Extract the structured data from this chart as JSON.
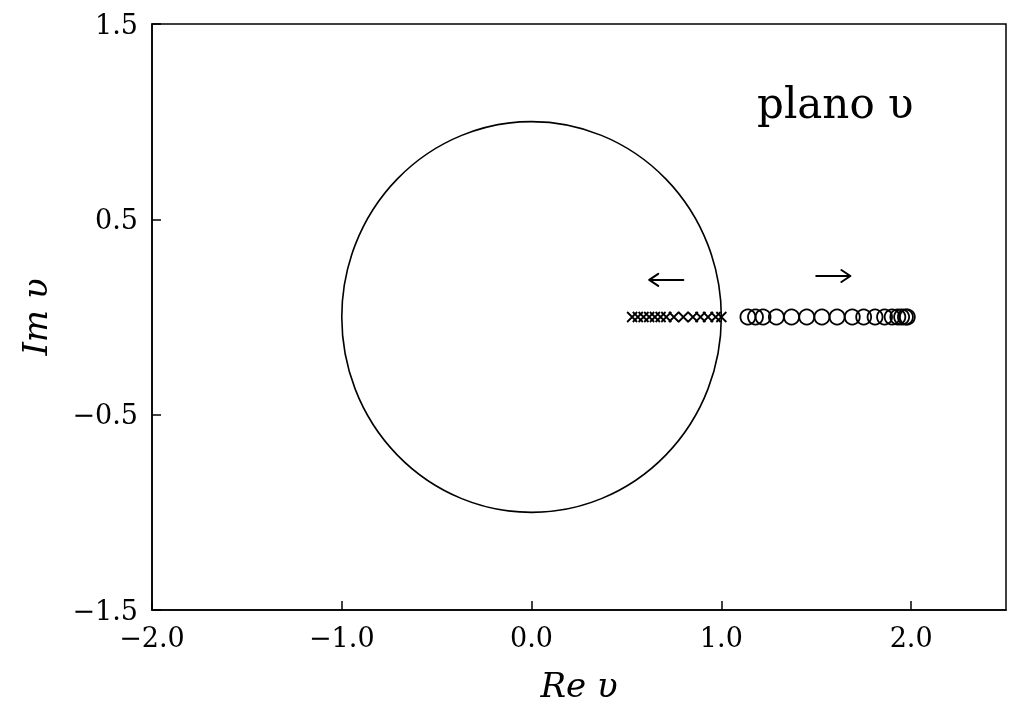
{
  "chart_data": {
    "type": "scatter",
    "annotations": [
      "plano υ"
    ],
    "xlabel": "Re υ",
    "ylabel": "Im υ",
    "xlim": [
      -2,
      2.5
    ],
    "ylim": [
      -1.5,
      1.5
    ],
    "xticks": [
      {
        "value": -2,
        "label": "−2.0"
      },
      {
        "value": -1,
        "label": "−1.0"
      },
      {
        "value": 0,
        "label": "0.0"
      },
      {
        "value": 1,
        "label": "1.0"
      },
      {
        "value": 2,
        "label": "2.0"
      }
    ],
    "yticks": [
      1.5,
      0.5,
      {
        "value": -0.5,
        "label": "−0.5"
      },
      {
        "value": -1.5,
        "label": "−1.5"
      }
    ],
    "grid": false,
    "series": [
      {
        "color": "#000000",
        "marker": "cross",
        "x": [
          0.53,
          0.56,
          0.59,
          0.62,
          0.65,
          0.68,
          0.71,
          0.75,
          0.8,
          0.85,
          0.89,
          0.93,
          0.97,
          1.0
        ],
        "values": [
          0,
          0,
          0,
          0,
          0,
          0,
          0,
          0,
          0,
          0,
          0,
          0,
          0,
          0
        ]
      },
      {
        "color": "#000000",
        "marker": "circle",
        "x": [
          1.14,
          1.18,
          1.22,
          1.29,
          1.37,
          1.45,
          1.53,
          1.61,
          1.69,
          1.75,
          1.81,
          1.86,
          1.9,
          1.93,
          1.95,
          1.97,
          1.98
        ],
        "values": [
          0,
          0,
          0,
          0,
          0,
          0,
          0,
          0,
          0,
          0,
          0,
          0,
          0,
          0,
          0,
          0,
          0
        ]
      }
    ]
  }
}
